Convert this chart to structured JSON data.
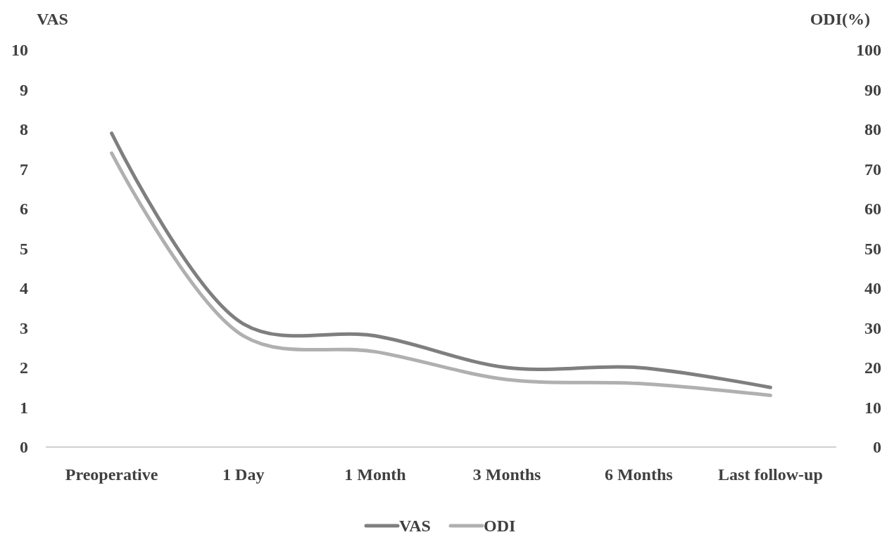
{
  "chart_data": {
    "type": "line",
    "ylabel": "VAS",
    "y2label": "ODI(%)",
    "categories": [
      "Preoperative",
      "1 Day",
      "1 Month",
      "3 Months",
      "6 Months",
      "Last follow-up"
    ],
    "series": [
      {
        "name": "VAS",
        "color": "#7f7f7f",
        "values": [
          7.9,
          3.1,
          2.8,
          2.0,
          2.0,
          1.5
        ]
      },
      {
        "name": "ODI",
        "color": "#b0b0b0",
        "axis": "y2",
        "values": [
          74,
          28,
          24,
          17,
          16,
          13
        ]
      }
    ],
    "ylim": [
      0,
      10
    ],
    "yticks": [
      0,
      1,
      2,
      3,
      4,
      5,
      6,
      7,
      8,
      9,
      10
    ],
    "y2lim": [
      0,
      100
    ],
    "y2ticks": [
      0,
      10,
      20,
      30,
      40,
      50,
      60,
      70,
      80,
      90,
      100
    ],
    "grid": false,
    "legend": "bottom",
    "marker": "none",
    "line_style": "solid"
  }
}
